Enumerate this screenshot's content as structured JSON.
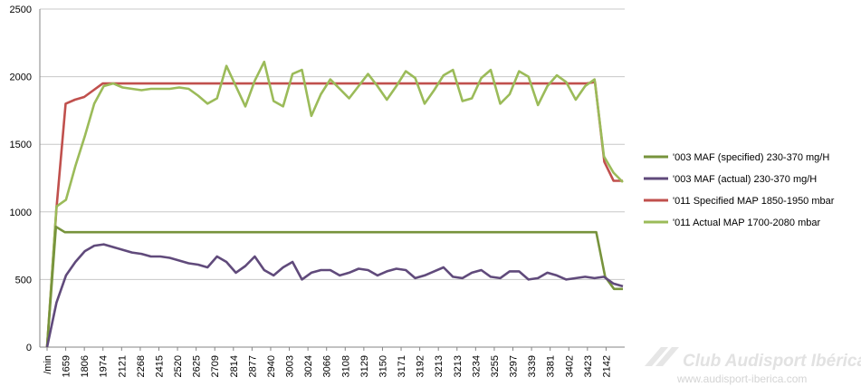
{
  "chart_data": {
    "type": "line",
    "title": "",
    "xlabel": "",
    "ylabel": "",
    "ylim": [
      0,
      2500
    ],
    "y_ticks": [
      0,
      500,
      1000,
      1500,
      2000,
      2500
    ],
    "grid": "horizontal",
    "legend_position": "right",
    "x_tick_labels": [
      "/min",
      "1659",
      "1806",
      "1974",
      "2121",
      "2268",
      "2415",
      "2520",
      "2625",
      "2709",
      "2814",
      "2877",
      "2940",
      "3003",
      "3024",
      "3066",
      "3108",
      "3129",
      "3150",
      "3171",
      "3192",
      "3213",
      "3213",
      "3234",
      "3255",
      "3297",
      "3339",
      "3381",
      "3402",
      "3423",
      "2142"
    ],
    "series": [
      {
        "name": "'003 MAF (specified) 230-370 mg/H",
        "color": "#77933C",
        "values": [
          0,
          890,
          850,
          850,
          850,
          850,
          850,
          850,
          850,
          850,
          850,
          850,
          850,
          850,
          850,
          850,
          850,
          850,
          850,
          850,
          850,
          850,
          850,
          850,
          850,
          850,
          850,
          850,
          850,
          850,
          850,
          850,
          850,
          850,
          850,
          850,
          850,
          850,
          850,
          850,
          850,
          850,
          850,
          850,
          850,
          850,
          850,
          850,
          850,
          850,
          850,
          850,
          850,
          850,
          850,
          850,
          850,
          850,
          850,
          850,
          850,
          850,
          850,
          520,
          430,
          430
        ]
      },
      {
        "name": "'003 MAF (actual)  230-370 mg/H",
        "color": "#604A7B",
        "values": [
          0,
          330,
          530,
          630,
          710,
          750,
          760,
          740,
          720,
          700,
          690,
          670,
          670,
          660,
          640,
          620,
          610,
          590,
          670,
          630,
          550,
          600,
          670,
          570,
          530,
          590,
          630,
          500,
          550,
          570,
          570,
          530,
          550,
          580,
          570,
          530,
          560,
          580,
          570,
          510,
          530,
          560,
          590,
          520,
          510,
          550,
          570,
          520,
          510,
          560,
          560,
          500,
          510,
          550,
          530,
          500,
          510,
          520,
          510,
          520,
          470,
          450
        ]
      },
      {
        "name": "'011 Specified MAP 1850-1950 mbar",
        "color": "#C0504D",
        "values": [
          0,
          1020,
          1800,
          1830,
          1850,
          1900,
          1950,
          1950,
          1950,
          1950,
          1950,
          1950,
          1950,
          1950,
          1950,
          1950,
          1950,
          1950,
          1950,
          1950,
          1950,
          1950,
          1950,
          1950,
          1950,
          1950,
          1950,
          1950,
          1950,
          1950,
          1950,
          1950,
          1950,
          1950,
          1950,
          1950,
          1950,
          1950,
          1950,
          1950,
          1950,
          1950,
          1950,
          1950,
          1950,
          1950,
          1950,
          1950,
          1950,
          1950,
          1950,
          1950,
          1950,
          1950,
          1950,
          1950,
          1950,
          1950,
          1950,
          1960,
          1370,
          1230,
          1230
        ]
      },
      {
        "name": "'011 Actual MAP 1700-2080 mbar",
        "color": "#9BBB59",
        "values": [
          0,
          1040,
          1090,
          1340,
          1560,
          1800,
          1930,
          1950,
          1920,
          1910,
          1900,
          1910,
          1910,
          1910,
          1920,
          1910,
          1860,
          1800,
          1840,
          2080,
          1930,
          1780,
          1970,
          2110,
          1820,
          1780,
          2020,
          2050,
          1710,
          1870,
          1980,
          1910,
          1840,
          1930,
          2020,
          1930,
          1830,
          1930,
          2040,
          1990,
          1800,
          1900,
          2010,
          2050,
          1820,
          1840,
          1990,
          2050,
          1800,
          1870,
          2040,
          2000,
          1790,
          1930,
          2010,
          1960,
          1830,
          1930,
          1980,
          1410,
          1290,
          1220
        ]
      }
    ]
  },
  "watermark": {
    "line1": "Club Audisport Ibérica",
    "line2": "www.audisport-iberica.com"
  }
}
